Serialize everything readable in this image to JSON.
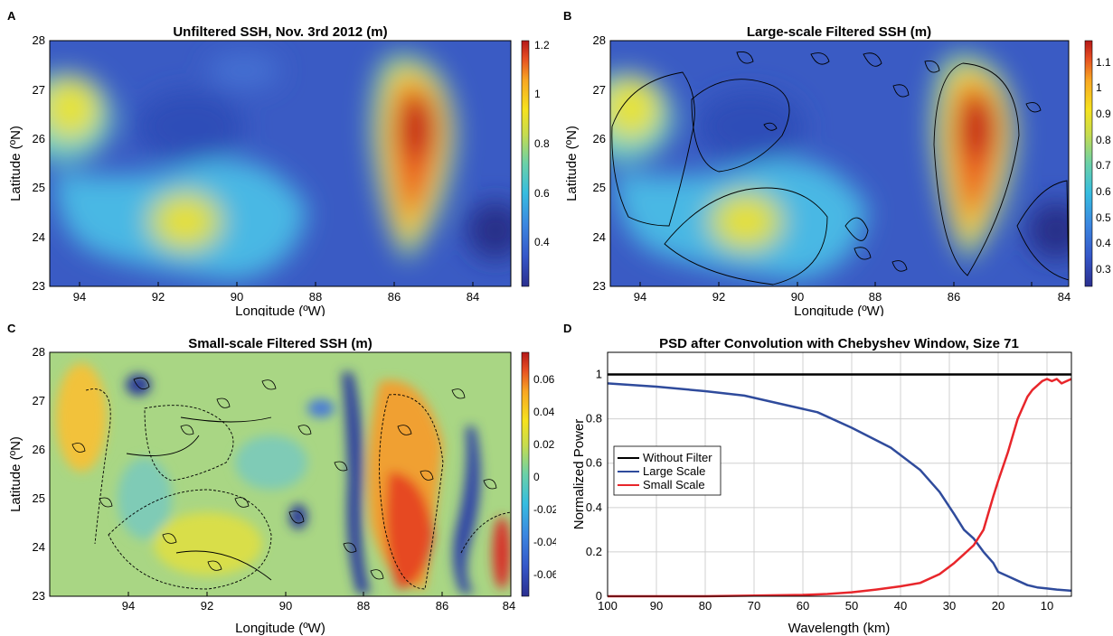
{
  "panels": {
    "a": {
      "letter": "A",
      "title": "Unfiltered SSH, Nov. 3rd 2012 (m)",
      "xlabel": "Longitude (ºW)",
      "ylabel": "Latitude (ºN)",
      "xticks": [
        "94",
        "92",
        "90",
        "88",
        "86",
        "84"
      ],
      "yticks": [
        "23",
        "24",
        "25",
        "26",
        "27",
        "28"
      ],
      "colorbar_ticks": [
        "0.4",
        "0.6",
        "0.8",
        "1",
        "1.2"
      ],
      "colorbar_range": [
        0.25,
        1.25
      ]
    },
    "b": {
      "letter": "B",
      "title": "Large-scale Filtered SSH (m)",
      "xlabel": "Longitude (ºW)",
      "ylabel": "Latitude (ºN)",
      "xticks": [
        "94",
        "92",
        "90",
        "88",
        "86",
        "84"
      ],
      "yticks": [
        "23",
        "24",
        "25",
        "26",
        "27",
        "28"
      ],
      "colorbar_ticks": [
        "0.3",
        "0.4",
        "0.5",
        "0.6",
        "0.7",
        "0.8",
        "0.9",
        "1",
        "1.1"
      ],
      "colorbar_range": [
        0.25,
        1.2
      ]
    },
    "c": {
      "letter": "C",
      "title": "Small-scale Filtered SSH (m)",
      "xlabel": "Longitude (ºW)",
      "ylabel": "Latitude (ºN)",
      "xticks": [
        "94",
        "92",
        "90",
        "88",
        "86",
        "84"
      ],
      "yticks": [
        "23",
        "24",
        "25",
        "26",
        "27",
        "28"
      ],
      "colorbar_ticks": [
        "-0.06",
        "-0.04",
        "-0.02",
        "0",
        "0.02",
        "0.04",
        "0.06"
      ],
      "colorbar_range": [
        -0.07,
        0.07
      ]
    },
    "d": {
      "letter": "D",
      "title": "PSD after Convolution with Chebyshev Window, Size 71",
      "xlabel": "Wavelength (km)",
      "ylabel": "Normalized Power",
      "xticks": [
        "100",
        "90",
        "80",
        "70",
        "60",
        "50",
        "40",
        "30",
        "20",
        "10"
      ],
      "yticks": [
        "0",
        "0.2",
        "0.4",
        "0.6",
        "0.8",
        "1"
      ],
      "legend": [
        "Without Filter",
        "Large Scale",
        "Small Scale"
      ]
    }
  },
  "colors": {
    "without_filter": "#000000",
    "large_scale": "#2f4b9c",
    "small_scale": "#e8262b"
  },
  "chart_data": [
    {
      "type": "heatmap",
      "title": "Unfiltered SSH, Nov. 3rd 2012 (m)",
      "xlabel": "Longitude (ºW)",
      "ylabel": "Latitude (ºN)",
      "xlim": [
        95.8,
        84
      ],
      "ylim": [
        23,
        28
      ],
      "colorbar_range": [
        0.25,
        1.25
      ],
      "features": [
        {
          "lon": 95.2,
          "lat": 26.1,
          "value": 0.8
        },
        {
          "lon": 92.0,
          "lat": 24.4,
          "value": 0.8
        },
        {
          "lon": 86.5,
          "lat": 25.6,
          "value": 1.2
        },
        {
          "lon": 92.5,
          "lat": 26.1,
          "value": 0.3
        },
        {
          "lon": 84.5,
          "lat": 24.0,
          "value": 0.25
        }
      ]
    },
    {
      "type": "heatmap",
      "title": "Large-scale Filtered SSH (m)",
      "xlabel": "Longitude (ºW)",
      "ylabel": "Latitude (ºN)",
      "xlim": [
        95.8,
        84
      ],
      "ylim": [
        23,
        28
      ],
      "colorbar_range": [
        0.25,
        1.2
      ],
      "features": [
        {
          "lon": 95.2,
          "lat": 26.1,
          "value": 0.8
        },
        {
          "lon": 92.0,
          "lat": 24.4,
          "value": 0.8
        },
        {
          "lon": 86.5,
          "lat": 25.6,
          "value": 1.15
        },
        {
          "lon": 92.5,
          "lat": 26.1,
          "value": 0.3
        },
        {
          "lon": 84.5,
          "lat": 24.0,
          "value": 0.28
        }
      ]
    },
    {
      "type": "heatmap",
      "title": "Small-scale Filtered SSH (m)",
      "xlabel": "Longitude (ºW)",
      "ylabel": "Latitude (ºN)",
      "xlim": [
        95.8,
        84
      ],
      "ylim": [
        23,
        28
      ],
      "colorbar_range": [
        -0.07,
        0.07
      ]
    },
    {
      "type": "line",
      "title": "PSD after Convolution with Chebyshev Window, Size 71",
      "xlabel": "Wavelength (km)",
      "ylabel": "Normalized Power",
      "xlim": [
        100,
        5
      ],
      "ylim": [
        0,
        1.1
      ],
      "grid": true,
      "legend_position": "middle-left",
      "series": [
        {
          "name": "Without Filter",
          "x": [
            100,
            5
          ],
          "y": [
            1.0,
            1.0
          ]
        },
        {
          "name": "Large Scale",
          "x": [
            100,
            90,
            80,
            72,
            65,
            57,
            50,
            42,
            36,
            32,
            29,
            27,
            25,
            23,
            21,
            20,
            18,
            16,
            14,
            12,
            10,
            8,
            5
          ],
          "y": [
            0.96,
            0.945,
            0.925,
            0.905,
            0.87,
            0.83,
            0.76,
            0.67,
            0.57,
            0.47,
            0.37,
            0.3,
            0.26,
            0.2,
            0.15,
            0.11,
            0.09,
            0.07,
            0.05,
            0.04,
            0.035,
            0.03,
            0.025
          ]
        },
        {
          "name": "Small Scale",
          "x": [
            100,
            90,
            80,
            70,
            60,
            55,
            50,
            45,
            40,
            36,
            32,
            29,
            27,
            25,
            23,
            21,
            20,
            18,
            16,
            15,
            14,
            13,
            12,
            11,
            10,
            9,
            8,
            7,
            6,
            5
          ],
          "y": [
            0.0,
            0.0,
            0.0,
            0.003,
            0.006,
            0.01,
            0.018,
            0.03,
            0.045,
            0.06,
            0.1,
            0.15,
            0.19,
            0.23,
            0.3,
            0.45,
            0.52,
            0.65,
            0.8,
            0.85,
            0.9,
            0.93,
            0.95,
            0.97,
            0.98,
            0.97,
            0.98,
            0.96,
            0.97,
            0.98
          ]
        }
      ]
    }
  ]
}
